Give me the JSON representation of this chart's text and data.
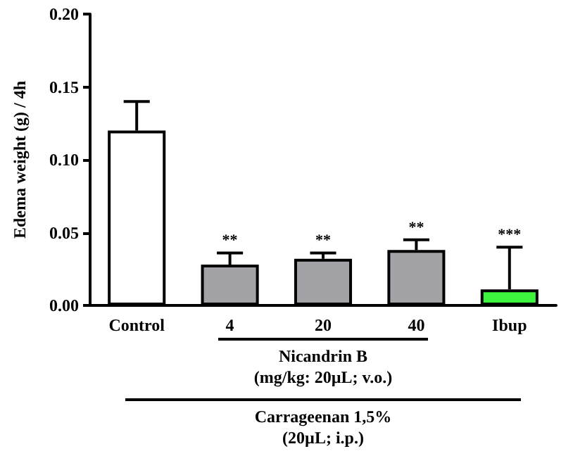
{
  "chart_data": {
    "type": "bar",
    "ylabel": "Edema weight (g) / 4h",
    "categories": [
      "Control",
      "4",
      "20",
      "40",
      "Ibup"
    ],
    "values": [
      0.12,
      0.028,
      0.032,
      0.038,
      0.011
    ],
    "colors": [
      "#ffffff",
      "#a3a3a7",
      "#a3a3a7",
      "#a3a3a7",
      "#3cf53c"
    ],
    "errors": [
      [
        0.12,
        0.14
      ],
      [
        0.028,
        0.036
      ],
      [
        0.032,
        0.036
      ],
      [
        0.038,
        0.045
      ],
      [
        0.011,
        0.04
      ]
    ],
    "ylim": [
      0,
      0.2
    ],
    "yticks": [
      {
        "value": 0,
        "label": "0.00"
      },
      {
        "value": 0.05,
        "label": "0.05"
      },
      {
        "value": 0.1,
        "label": "0.10"
      },
      {
        "value": 0.15,
        "label": "0.15"
      },
      {
        "value": 0.2,
        "label": "0.20"
      }
    ],
    "grid": false,
    "annotations": [
      {
        "text": "**",
        "x": "4",
        "y": 0.036
      },
      {
        "text": "**",
        "x": "20",
        "y": 0.036
      },
      {
        "text": "**",
        "x": "40",
        "y": 0.045
      },
      {
        "text": "***",
        "x": "Ibup",
        "y": 0.04
      },
      "Nicandrin B\n(mg/kg: 20µL; v.o.)",
      "Carrageenan 1,5%\n(20µL; i.p.)"
    ]
  }
}
